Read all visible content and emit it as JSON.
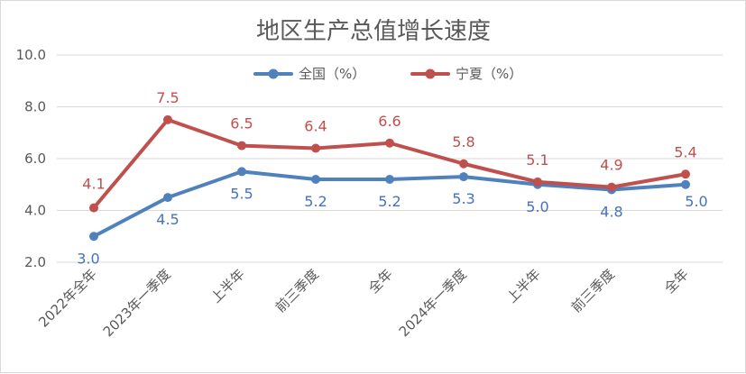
{
  "chart_data": {
    "type": "line",
    "title": "地区生产总值增长速度",
    "xlabel": "",
    "ylabel": "",
    "categories": [
      "2022年全年",
      "2023年一季度",
      "上半年",
      "前三季度",
      "全年",
      "2024年一季度",
      "上半年",
      "前三季度",
      "全年"
    ],
    "y_tick_labels": [
      "2.0",
      "4.0",
      "6.0",
      "8.0",
      "10.0"
    ],
    "ylim": [
      2.0,
      10.0
    ],
    "grid": true,
    "legend_position": "top",
    "series": [
      {
        "name": "全国（%）",
        "color": "#4f81bd",
        "values": [
          3.0,
          4.5,
          5.5,
          5.2,
          5.2,
          5.3,
          5.0,
          4.8,
          5.0
        ],
        "labels": [
          "3.0",
          "4.5",
          "5.5",
          "5.2",
          "5.2",
          "5.3",
          "5.0",
          "4.8",
          "5.0"
        ]
      },
      {
        "name": "宁夏（%）",
        "color": "#c0504d",
        "values": [
          4.1,
          7.5,
          6.5,
          6.4,
          6.6,
          5.8,
          5.1,
          4.9,
          5.4
        ],
        "labels": [
          "4.1",
          "7.5",
          "6.5",
          "6.4",
          "6.6",
          "5.8",
          "5.1",
          "4.9",
          "5.4"
        ]
      }
    ]
  }
}
